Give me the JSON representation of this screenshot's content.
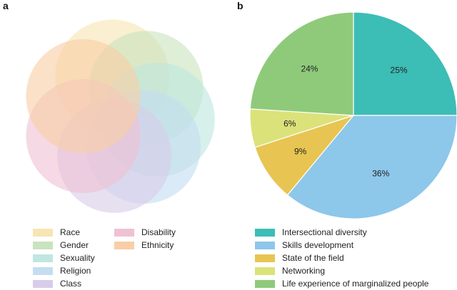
{
  "panels": {
    "a": "a",
    "b": "b"
  },
  "venn": {
    "sets": [
      {
        "name": "Race",
        "color": "#f7e5b3"
      },
      {
        "name": "Gender",
        "color": "#c9e3bf"
      },
      {
        "name": "Sexuality",
        "color": "#bfe7df"
      },
      {
        "name": "Religion",
        "color": "#c4ddf1"
      },
      {
        "name": "Class",
        "color": "#d8cde9"
      },
      {
        "name": "Disability",
        "color": "#efc1d3"
      },
      {
        "name": "Ethnicity",
        "color": "#f8cea6"
      }
    ]
  },
  "chart_data": {
    "type": "pie",
    "title": "",
    "slices": [
      {
        "label": "Intersectional diversity",
        "value": 25,
        "display": "25%",
        "color": "#3cbdb6"
      },
      {
        "label": "Skills development",
        "value": 36,
        "display": "36%",
        "color": "#8dc7ea"
      },
      {
        "label": "State of the field",
        "value": 9,
        "display": "9%",
        "color": "#e8c552"
      },
      {
        "label": "Networking",
        "value": 6,
        "display": "6%",
        "color": "#dce27a"
      },
      {
        "label": "Life experience of marginalized people",
        "value": 24,
        "display": "24%",
        "color": "#8fca7b"
      }
    ],
    "start": "12 o'clock",
    "direction": "clockwise",
    "legend": "bottom"
  }
}
